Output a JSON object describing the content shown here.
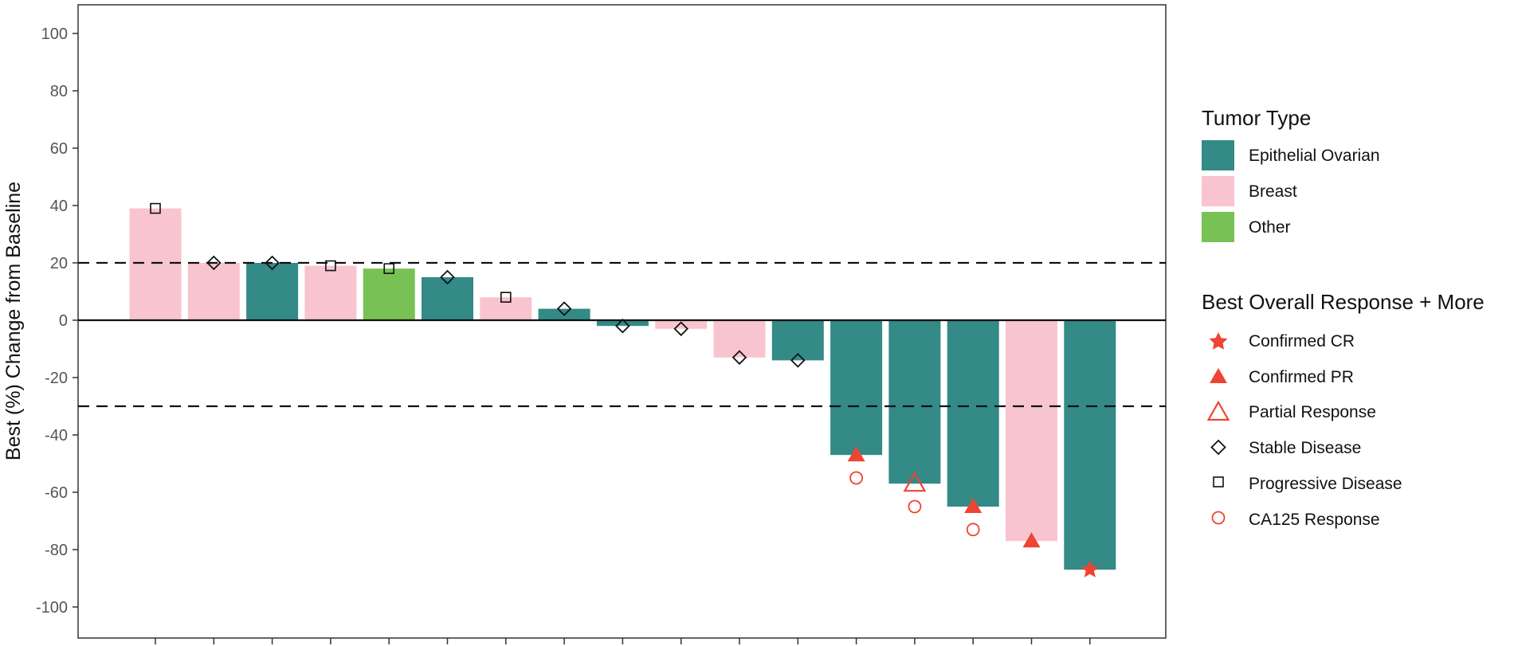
{
  "chart_data": {
    "type": "bar",
    "ylabel": "Best (%) Change from Baseline",
    "xlabel": "",
    "ylim": [
      -110,
      110
    ],
    "yticks": [
      100,
      80,
      60,
      40,
      20,
      0,
      -20,
      -40,
      -60,
      -80,
      -100
    ],
    "grid": false,
    "reference_lines": [
      {
        "y": 20,
        "style": "dashed"
      },
      {
        "y": -30,
        "style": "dashed"
      },
      {
        "y": 0,
        "style": "solid"
      }
    ],
    "values": [
      39,
      20,
      20,
      19,
      18,
      15,
      8,
      4,
      -2,
      -3,
      -13,
      -14,
      -47,
      -57,
      -65,
      -77,
      -87
    ],
    "tumor_type": [
      "Breast",
      "Breast",
      "Epithelial Ovarian",
      "Breast",
      "Other",
      "Epithelial Ovarian",
      "Breast",
      "Epithelial Ovarian",
      "Epithelial Ovarian",
      "Breast",
      "Breast",
      "Epithelial Ovarian",
      "Epithelial Ovarian",
      "Epithelial Ovarian",
      "Epithelial Ovarian",
      "Breast",
      "Epithelial Ovarian"
    ],
    "best_overall_response": [
      "Progressive Disease",
      "Stable Disease",
      "Stable Disease",
      "Progressive Disease",
      "Progressive Disease",
      "Stable Disease",
      "Progressive Disease",
      "Stable Disease",
      "Stable Disease",
      "Stable Disease",
      "Stable Disease",
      "Stable Disease",
      "Confirmed PR",
      "Partial Response",
      "Confirmed PR",
      "Confirmed PR",
      "Confirmed CR"
    ],
    "ca125_response": [
      false,
      false,
      false,
      false,
      false,
      false,
      false,
      false,
      false,
      false,
      false,
      false,
      true,
      true,
      true,
      false,
      false
    ],
    "ca125_marker_y": [
      null,
      null,
      null,
      null,
      null,
      null,
      null,
      null,
      null,
      null,
      null,
      null,
      -55,
      -65,
      -73,
      null,
      null
    ],
    "legend_placement": "right"
  },
  "colors": {
    "Epithelial Ovarian": "#338a87",
    "Breast": "#f8c4d0",
    "Other": "#78c155",
    "response_red": "#ee4433",
    "marker_black": "#111111"
  },
  "legend": {
    "tumor_type": {
      "title": "Tumor Type",
      "items": [
        "Epithelial Ovarian",
        "Breast",
        "Other"
      ]
    },
    "response": {
      "title": "Best Overall Response + More",
      "items": [
        {
          "label": "Confirmed CR",
          "shape": "star"
        },
        {
          "label": "Confirmed PR",
          "shape": "filled-triangle"
        },
        {
          "label": "Partial Response",
          "shape": "open-triangle"
        },
        {
          "label": "Stable Disease",
          "shape": "diamond"
        },
        {
          "label": "Progressive Disease",
          "shape": "square"
        },
        {
          "label": "CA125 Response",
          "shape": "circle"
        }
      ]
    }
  }
}
